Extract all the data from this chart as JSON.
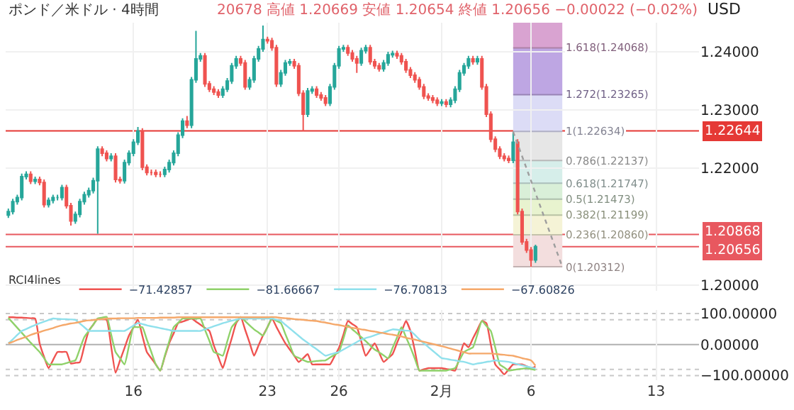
{
  "chart_data": [
    {
      "type": "candlestick",
      "title": "ポンド／米ドル · 4時間",
      "subtitle": "20678 高値 1.20669 安値 1.20654 終値 1.20656 −0.00022 (−0.02%)",
      "annotations": [
        "USD"
      ],
      "categories": [
        null,
        null,
        null,
        null,
        null,
        null,
        null,
        null,
        null,
        null,
        null,
        null,
        null,
        null,
        null,
        null,
        null,
        null,
        null,
        null,
        null,
        null,
        null,
        null,
        null,
        null,
        null,
        null,
        "16",
        null,
        null,
        null,
        null,
        null,
        null,
        null,
        null,
        null,
        null,
        null,
        null,
        null,
        null,
        null,
        null,
        null,
        null,
        null,
        null,
        null,
        null,
        null,
        null,
        null,
        null,
        null,
        null,
        null,
        "23",
        null,
        null,
        null,
        null,
        null,
        null,
        null,
        null,
        null,
        null,
        null,
        null,
        null,
        null,
        null,
        "26",
        null,
        null,
        null,
        null,
        null,
        null,
        null,
        null,
        null,
        null,
        null,
        null,
        null,
        null,
        null,
        null,
        null,
        null,
        null,
        null,
        null,
        null,
        "2月",
        null,
        null,
        null,
        null,
        null,
        null,
        null,
        null,
        null,
        null,
        null,
        null,
        null,
        null,
        null,
        null,
        null,
        null,
        null,
        "6",
        null,
        null,
        null,
        null,
        null,
        null,
        null,
        null,
        null,
        null,
        null,
        null,
        null,
        null,
        null,
        null,
        null,
        null,
        null,
        null,
        null,
        null,
        null,
        null,
        null,
        null,
        null,
        "13",
        null,
        null,
        null,
        null,
        null,
        null,
        null,
        null,
        null
      ],
      "ohlc": [
        [
          1.212,
          1.2131,
          1.2115,
          1.2126
        ],
        [
          1.2126,
          1.2148,
          1.2121,
          1.2143
        ],
        [
          1.2143,
          1.2155,
          1.2138,
          1.215
        ],
        [
          1.215,
          1.2191,
          1.2145,
          1.2186
        ],
        [
          1.2186,
          1.2195,
          1.2181,
          1.219
        ],
        [
          1.219,
          1.2195,
          1.2173,
          1.2178
        ],
        [
          1.2178,
          1.2186,
          1.2173,
          1.2181
        ],
        [
          1.2181,
          1.2186,
          1.2171,
          1.2176
        ],
        [
          1.2176,
          1.2181,
          1.2133,
          1.2138
        ],
        [
          1.2138,
          1.215,
          1.2133,
          1.2145
        ],
        [
          1.2145,
          1.2155,
          1.214,
          1.215
        ],
        [
          1.215,
          1.2155,
          1.2145,
          1.215
        ],
        [
          1.215,
          1.2172,
          1.2145,
          1.2167
        ],
        [
          1.2167,
          1.2172,
          1.2131,
          1.2136
        ],
        [
          1.2136,
          1.2141,
          1.2102,
          1.211
        ],
        [
          1.211,
          1.2126,
          1.2105,
          1.2121
        ],
        [
          1.2121,
          1.2148,
          1.2116,
          1.2143
        ],
        [
          1.2143,
          1.216,
          1.2138,
          1.2155
        ],
        [
          1.2155,
          1.2167,
          1.215,
          1.2162
        ],
        [
          1.2162,
          1.2184,
          1.2157,
          1.2179
        ],
        [
          1.2179,
          1.2238,
          1.2088,
          1.2233
        ],
        [
          1.2233,
          1.2238,
          1.2221,
          1.2226
        ],
        [
          1.2226,
          1.2231,
          1.2212,
          1.2217
        ],
        [
          1.2217,
          1.2226,
          1.2212,
          1.2221
        ],
        [
          1.2221,
          1.2226,
          1.2176,
          1.2181
        ],
        [
          1.2181,
          1.2186,
          1.2174,
          1.2179
        ],
        [
          1.2179,
          1.2215,
          1.2174,
          1.221
        ],
        [
          1.221,
          1.2231,
          1.2205,
          1.2226
        ],
        [
          1.2226,
          1.225,
          1.2221,
          1.2245
        ],
        [
          1.2245,
          1.2271,
          1.224,
          1.2264
        ],
        [
          1.2264,
          1.2269,
          1.2197,
          1.2202
        ],
        [
          1.2202,
          1.2207,
          1.2188,
          1.2193
        ],
        [
          1.2193,
          1.2198,
          1.2188,
          1.2193
        ],
        [
          1.2193,
          1.2198,
          1.2185,
          1.219
        ],
        [
          1.219,
          1.2195,
          1.2185,
          1.219
        ],
        [
          1.219,
          1.2203,
          1.2185,
          1.2198
        ],
        [
          1.2198,
          1.2215,
          1.2193,
          1.221
        ],
        [
          1.221,
          1.2231,
          1.2205,
          1.2226
        ],
        [
          1.2226,
          1.2262,
          1.2221,
          1.2257
        ],
        [
          1.2257,
          1.2286,
          1.2252,
          1.2281
        ],
        [
          1.2281,
          1.229,
          1.2269,
          1.2274
        ],
        [
          1.2274,
          1.2357,
          1.2269,
          1.2352
        ],
        [
          1.2352,
          1.2436,
          1.2347,
          1.2388
        ],
        [
          1.2388,
          1.2398,
          1.2383,
          1.2393
        ],
        [
          1.2393,
          1.2398,
          1.234,
          1.2345
        ],
        [
          1.2345,
          1.235,
          1.2331,
          1.2336
        ],
        [
          1.2336,
          1.2341,
          1.2326,
          1.2331
        ],
        [
          1.2331,
          1.2336,
          1.2321,
          1.2326
        ],
        [
          1.2326,
          1.2341,
          1.2321,
          1.2336
        ],
        [
          1.2336,
          1.2355,
          1.2331,
          1.235
        ],
        [
          1.235,
          1.2381,
          1.2345,
          1.2376
        ],
        [
          1.2376,
          1.2393,
          1.2371,
          1.2388
        ],
        [
          1.2388,
          1.2393,
          1.2376,
          1.2381
        ],
        [
          1.2381,
          1.2386,
          1.2335,
          1.234
        ],
        [
          1.234,
          1.2357,
          1.2335,
          1.2352
        ],
        [
          1.2352,
          1.2393,
          1.2347,
          1.2388
        ],
        [
          1.2388,
          1.241,
          1.2383,
          1.2405
        ],
        [
          1.2405,
          1.2445,
          1.24,
          1.2421
        ],
        [
          1.2421,
          1.2426,
          1.2414,
          1.2419
        ],
        [
          1.2419,
          1.2424,
          1.2402,
          1.2407
        ],
        [
          1.2407,
          1.2412,
          1.234,
          1.2345
        ],
        [
          1.2345,
          1.2369,
          1.234,
          1.2364
        ],
        [
          1.2364,
          1.2386,
          1.2359,
          1.2381
        ],
        [
          1.2381,
          1.2388,
          1.2376,
          1.2383
        ],
        [
          1.2383,
          1.2388,
          1.2371,
          1.2376
        ],
        [
          1.2376,
          1.2381,
          1.2324,
          1.2329
        ],
        [
          1.2329,
          1.2334,
          1.2264,
          1.2293
        ],
        [
          1.2293,
          1.2338,
          1.2288,
          1.2333
        ],
        [
          1.2333,
          1.2341,
          1.2328,
          1.2336
        ],
        [
          1.2336,
          1.2341,
          1.2321,
          1.2326
        ],
        [
          1.2326,
          1.2331,
          1.2316,
          1.2321
        ],
        [
          1.2321,
          1.2326,
          1.2307,
          1.2312
        ],
        [
          1.2312,
          1.2345,
          1.2307,
          1.234
        ],
        [
          1.234,
          1.2381,
          1.2335,
          1.2376
        ],
        [
          1.2376,
          1.241,
          1.2371,
          1.2405
        ],
        [
          1.2405,
          1.2412,
          1.24,
          1.2407
        ],
        [
          1.2407,
          1.2412,
          1.2393,
          1.2398
        ],
        [
          1.2398,
          1.2403,
          1.2383,
          1.2388
        ],
        [
          1.2388,
          1.2393,
          1.2364,
          1.2381
        ],
        [
          1.2381,
          1.2407,
          1.2376,
          1.2402
        ],
        [
          1.2402,
          1.2412,
          1.2397,
          1.2407
        ],
        [
          1.2407,
          1.2412,
          1.2378,
          1.2383
        ],
        [
          1.2383,
          1.2388,
          1.2371,
          1.2376
        ],
        [
          1.2376,
          1.2381,
          1.2366,
          1.2371
        ],
        [
          1.2371,
          1.2386,
          1.2366,
          1.2381
        ],
        [
          1.2381,
          1.24,
          1.2376,
          1.2395
        ],
        [
          1.2395,
          1.2402,
          1.239,
          1.2397
        ],
        [
          1.2397,
          1.2402,
          1.2388,
          1.2393
        ],
        [
          1.2393,
          1.2398,
          1.2378,
          1.2383
        ],
        [
          1.2383,
          1.2388,
          1.2364,
          1.2369
        ],
        [
          1.2369,
          1.2374,
          1.2355,
          1.236
        ],
        [
          1.236,
          1.2365,
          1.2347,
          1.2352
        ],
        [
          1.2352,
          1.2357,
          1.2335,
          1.234
        ],
        [
          1.234,
          1.2345,
          1.2319,
          1.2324
        ],
        [
          1.2324,
          1.2329,
          1.2316,
          1.2321
        ],
        [
          1.2321,
          1.2326,
          1.2312,
          1.2317
        ],
        [
          1.2317,
          1.2322,
          1.2307,
          1.2312
        ],
        [
          1.2312,
          1.2319,
          1.2307,
          1.2314
        ],
        [
          1.2314,
          1.2319,
          1.2305,
          1.231
        ],
        [
          1.231,
          1.2322,
          1.2305,
          1.2317
        ],
        [
          1.2317,
          1.2341,
          1.2312,
          1.2336
        ],
        [
          1.2336,
          1.2369,
          1.2331,
          1.2364
        ],
        [
          1.2364,
          1.2381,
          1.2359,
          1.2376
        ],
        [
          1.2376,
          1.2393,
          1.2371,
          1.2388
        ],
        [
          1.2388,
          1.2393,
          1.2378,
          1.2383
        ],
        [
          1.2383,
          1.2393,
          1.2378,
          1.2388
        ],
        [
          1.2388,
          1.2393,
          1.2335,
          1.234
        ],
        [
          1.234,
          1.2345,
          1.2288,
          1.2293
        ],
        [
          1.2293,
          1.2298,
          1.2245,
          1.225
        ],
        [
          1.225,
          1.2255,
          1.2228,
          1.2233
        ],
        [
          1.2233,
          1.2238,
          1.2216,
          1.2221
        ],
        [
          1.2221,
          1.2226,
          1.2212,
          1.2217
        ],
        [
          1.2217,
          1.2222,
          1.2209,
          1.2214
        ],
        [
          1.2214,
          1.2263,
          1.2209,
          1.2245
        ],
        [
          1.2245,
          1.225,
          1.2121,
          1.2126
        ],
        [
          1.2126,
          1.2131,
          1.2069,
          1.2074
        ],
        [
          1.2074,
          1.2079,
          1.2055,
          1.206
        ],
        [
          1.206,
          1.2065,
          1.2031,
          1.2043
        ],
        [
          1.2043,
          1.2069,
          1.2038,
          1.20656
        ],
        null,
        null,
        null,
        null,
        null,
        null,
        null,
        null,
        null,
        null,
        null,
        null,
        null,
        null,
        null,
        null,
        null,
        null,
        null,
        null,
        null,
        null,
        null,
        null,
        null,
        null,
        null,
        null,
        null,
        null,
        null,
        null,
        null,
        null,
        null,
        null
      ],
      "ylim": [
        1.199,
        1.245
      ],
      "yticks": [
        {
          "value": 1.2,
          "label": "1.20000"
        },
        {
          "value": 1.22,
          "label": "1.22000"
        },
        {
          "value": 1.23,
          "label": "1.23000"
        },
        {
          "value": 1.24,
          "label": "1.24000"
        }
      ],
      "tick_labels": "y",
      "grid": true,
      "ref_lines": [
        {
          "axis": "y",
          "value": 1.22644,
          "label": "1.22644",
          "color": "#e53935"
        },
        {
          "axis": "y",
          "value": 1.20868,
          "label": "1.20868",
          "color": "#e8585f"
        },
        {
          "axis": "y",
          "value": 1.20656,
          "label": "1.20656",
          "color": "#e8585f"
        }
      ],
      "bands": [
        {
          "axis": "y",
          "from": 1.20312,
          "to": 1.2086,
          "label": "0(1.20312)",
          "color": "#f3dede"
        },
        {
          "axis": "y",
          "from": 1.2086,
          "to": 1.21199,
          "label": "0.236(1.20860)",
          "color": "#f5f3d6"
        },
        {
          "axis": "y",
          "from": 1.21199,
          "to": 1.21473,
          "label": "0.382(1.21199)",
          "color": "#e8f3cf"
        },
        {
          "axis": "y",
          "from": 1.21473,
          "to": 1.21747,
          "label": "0.5(1.21473)",
          "color": "#d9efd8"
        },
        {
          "axis": "y",
          "from": 1.21747,
          "to": 1.22137,
          "label": "0.618(1.21747)",
          "color": "#d6eeea"
        },
        {
          "axis": "y",
          "from": 1.22137,
          "to": 1.22634,
          "label": "0.786(1.22137)",
          "color": "#e6e6e6"
        },
        {
          "axis": "y",
          "from": 1.22634,
          "to": 1.23265,
          "label": "1(1.22634)",
          "color": "#dcdcf6"
        },
        {
          "axis": "y",
          "from": 1.23265,
          "to": 1.24068,
          "label": "1.272(1.23265)",
          "color": "#bea6e3"
        },
        {
          "axis": "y",
          "from": 1.24068,
          "to": 1.245,
          "label": "1.618(1.24068)",
          "color": "#d9a3d1"
        }
      ]
    },
    {
      "type": "line",
      "legend_title": "RCI4lines",
      "legend": "top left",
      "series": [
        {
          "name": "−71.42857",
          "color": "#ef5350",
          "values": [
            88,
            88,
            87,
            87,
            86,
            85,
            84,
            4,
            -40,
            -76,
            -50,
            -24,
            -24,
            -24,
            -61,
            -59,
            -57,
            -5,
            44,
            64,
            84,
            82,
            80,
            -5,
            -91,
            -51,
            -11,
            29,
            55,
            80,
            28,
            -24,
            -44,
            -64,
            -84,
            -40,
            4,
            36,
            69,
            74,
            79,
            84,
            74,
            64,
            54,
            44,
            -3,
            -40,
            -76,
            -28,
            20,
            69,
            89,
            48,
            6,
            -36,
            -3,
            29,
            56,
            84,
            57,
            30,
            4,
            -16,
            -36,
            -56,
            -44,
            -31,
            -64,
            -64,
            -64,
            -64,
            -64,
            -38,
            -11,
            32,
            76,
            66,
            56,
            10,
            -36,
            -16,
            4,
            -26,
            -56,
            -44,
            -31,
            5,
            40,
            76,
            44,
            -20,
            -84,
            -80,
            -76,
            -76,
            -76,
            -76,
            -79,
            -81,
            -84,
            -40,
            4,
            -9,
            20,
            48,
            76,
            69,
            0,
            -64,
            -80,
            -96,
            -80,
            -64,
            -64,
            -64,
            -70,
            -76,
            -71,
            null,
            null,
            null,
            null,
            null,
            null,
            null,
            null,
            null,
            null,
            null,
            null,
            null,
            null,
            null,
            null,
            null,
            null,
            null,
            null,
            null,
            null,
            null,
            null,
            null,
            null,
            null,
            null,
            null,
            null,
            null,
            null,
            null,
            null,
            null,
            null
          ]
        },
        {
          "name": "−81.66667",
          "color": "#8fd16a",
          "values": [
            86,
            70,
            54,
            38,
            22,
            6,
            -9,
            -24,
            -44,
            -64,
            -64,
            -64,
            -64,
            -60,
            -55,
            -51,
            -14,
            24,
            44,
            64,
            84,
            87,
            89,
            33,
            -24,
            -44,
            -64,
            -4,
            56,
            56,
            56,
            16,
            -24,
            -64,
            -84,
            -37,
            10,
            56,
            70,
            84,
            84,
            84,
            84,
            84,
            48,
            12,
            -24,
            -30,
            -36,
            10,
            56,
            73,
            89,
            76,
            62,
            49,
            39,
            29,
            56,
            84,
            77,
            69,
            34,
            -1,
            -36,
            -43,
            -50,
            -56,
            -55,
            -53,
            -52,
            -51,
            -42,
            -33,
            -24,
            19,
            62,
            49,
            37,
            24,
            11,
            -3,
            -16,
            -25,
            -35,
            -44,
            -11,
            23,
            56,
            24,
            -9,
            -46,
            -84,
            -84,
            -84,
            -84,
            -84,
            -84,
            -84,
            -80,
            -76,
            -50,
            -24,
            -16,
            -9,
            33,
            76,
            60,
            44,
            -10,
            -64,
            -74,
            -84,
            -82,
            -80,
            -78,
            -76,
            -79,
            -82,
            null,
            null,
            null,
            null,
            null,
            null,
            null,
            null,
            null,
            null,
            null,
            null,
            null,
            null,
            null,
            null,
            null,
            null,
            null,
            null,
            null,
            null,
            null,
            null,
            null,
            null,
            null,
            null,
            null,
            null,
            null,
            null,
            null,
            null,
            null,
            null
          ]
        },
        {
          "name": "−76.70813",
          "color": "#8fe0ec",
          "values": [
            4,
            17,
            31,
            44,
            50,
            57,
            63,
            69,
            74,
            79,
            84,
            83,
            82,
            82,
            81,
            80,
            68,
            56,
            44,
            44,
            44,
            44,
            44,
            44,
            44,
            44,
            44,
            52,
            61,
            69,
            66,
            62,
            59,
            56,
            53,
            50,
            47,
            44,
            44,
            44,
            44,
            44,
            44,
            44,
            49,
            54,
            59,
            64,
            69,
            73,
            77,
            80,
            84,
            84,
            84,
            84,
            84,
            84,
            84,
            84,
            80,
            76,
            64,
            52,
            40,
            28,
            16,
            6,
            -5,
            -15,
            -26,
            -36,
            -32,
            -28,
            -24,
            -16,
            -8,
            0,
            8,
            16,
            21,
            25,
            30,
            35,
            39,
            44,
            49,
            48,
            46,
            45,
            44,
            31,
            17,
            4,
            -8,
            -20,
            -32,
            -44,
            -46,
            -49,
            -51,
            -54,
            -56,
            -60,
            -64,
            -61,
            -59,
            -56,
            -54,
            -51,
            -53,
            -54,
            -56,
            -60,
            -64,
            -67,
            -71,
            -74,
            -77,
            null,
            null,
            null,
            null,
            null,
            null,
            null,
            null,
            null,
            null,
            null,
            null,
            null,
            null,
            null,
            null,
            null,
            null,
            null,
            null,
            null,
            null,
            null,
            null,
            null,
            null,
            null,
            null,
            null,
            null,
            null,
            null,
            null,
            null,
            null,
            null
          ]
        },
        {
          "name": "−67.60826",
          "color": "#f5a86a",
          "values": [
            4,
            9,
            15,
            20,
            25,
            31,
            36,
            40,
            45,
            49,
            53,
            58,
            62,
            65,
            68,
            70,
            73,
            76,
            78,
            79,
            81,
            82,
            84,
            84,
            84,
            85,
            85,
            85,
            85,
            86,
            86,
            86,
            86,
            86,
            87,
            87,
            87,
            87,
            88,
            88,
            88,
            88,
            88,
            88,
            88,
            88,
            88,
            88,
            88,
            88,
            88,
            88,
            88,
            88,
            88,
            88,
            88,
            88,
            88,
            89,
            88,
            86,
            85,
            84,
            82,
            81,
            80,
            78,
            77,
            76,
            73,
            71,
            68,
            65,
            63,
            60,
            57,
            54,
            52,
            49,
            47,
            44,
            42,
            39,
            37,
            34,
            32,
            29,
            26,
            22,
            19,
            16,
            12,
            9,
            5,
            2,
            -2,
            -5,
            -9,
            -13,
            -17,
            -21,
            -25,
            -29,
            -29,
            -29,
            -29,
            -29,
            -29,
            -30,
            -32,
            -33,
            -35,
            -36,
            -40,
            -44,
            -47,
            -51,
            -68,
            null,
            null,
            null,
            null,
            null,
            null,
            null,
            null,
            null,
            null,
            null,
            null,
            null,
            null,
            null,
            null,
            null,
            null,
            null,
            null,
            null,
            null,
            null,
            null,
            null,
            null,
            null,
            null,
            null,
            null,
            null,
            null,
            null,
            null,
            null,
            null
          ]
        }
      ],
      "categories": [
        null,
        null,
        null,
        null,
        null,
        null,
        null,
        null,
        null,
        null,
        null,
        null,
        null,
        null,
        null,
        null,
        null,
        null,
        null,
        null,
        null,
        null,
        null,
        null,
        null,
        null,
        null,
        null,
        "16",
        null,
        null,
        null,
        null,
        null,
        null,
        null,
        null,
        null,
        null,
        null,
        null,
        null,
        null,
        null,
        null,
        null,
        null,
        null,
        null,
        null,
        null,
        null,
        null,
        null,
        null,
        null,
        null,
        null,
        "23",
        null,
        null,
        null,
        null,
        null,
        null,
        null,
        null,
        null,
        null,
        null,
        null,
        null,
        null,
        null,
        "26",
        null,
        null,
        null,
        null,
        null,
        null,
        null,
        null,
        null,
        null,
        null,
        null,
        null,
        null,
        null,
        null,
        null,
        null,
        null,
        null,
        null,
        null,
        "2月",
        null,
        null,
        null,
        null,
        null,
        null,
        null,
        null,
        null,
        null,
        null,
        null,
        null,
        null,
        null,
        null,
        null,
        null,
        null,
        "6",
        null,
        null,
        null,
        null,
        null,
        null,
        null,
        null,
        null,
        null,
        null,
        null,
        null,
        null,
        null,
        null,
        null,
        null,
        null,
        null,
        null,
        null,
        null,
        null,
        null,
        null,
        null,
        "13",
        null,
        null,
        null,
        null,
        null,
        null,
        null,
        null,
        null
      ],
      "ylim": [
        -115,
        112
      ],
      "yticks": [
        {
          "value": 100,
          "label": "100.00000"
        },
        {
          "value": 0,
          "label": "0.00000"
        },
        {
          "value": -100,
          "label": "−100.00000"
        }
      ],
      "grid": "x",
      "ref_lines": [
        {
          "axis": "y",
          "value": 100,
          "color": "#c8c8c8",
          "line_style": "dotted"
        },
        {
          "axis": "y",
          "value": 80,
          "color": "#c8c8c8",
          "line_style": "dotted"
        },
        {
          "axis": "y",
          "value": 0,
          "color": "#b0b0b0",
          "line_style": "solid"
        },
        {
          "axis": "y",
          "value": -80,
          "color": "#c8c8c8",
          "line_style": "dotted"
        },
        {
          "axis": "y",
          "value": -100,
          "color": "#c8c8c8",
          "line_style": "dotted"
        }
      ]
    }
  ]
}
